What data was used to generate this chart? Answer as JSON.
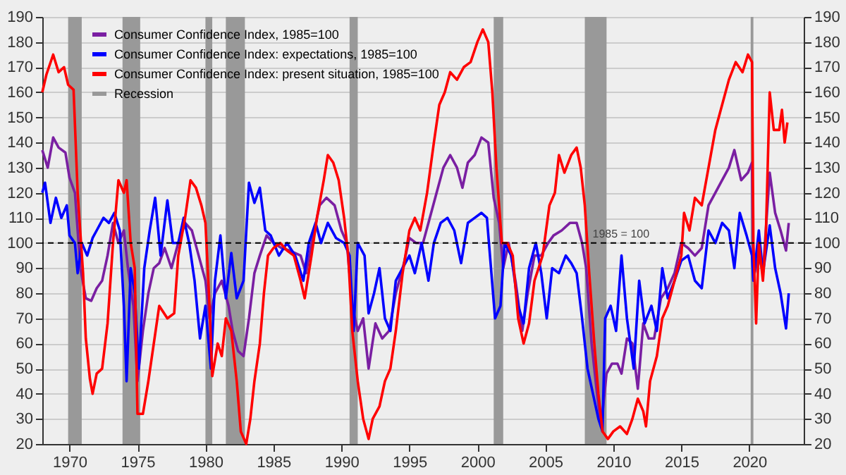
{
  "chart_data": {
    "type": "line",
    "legend": "top left",
    "grid": "y",
    "line_style": "solid",
    "xlim": [
      1968,
      2024
    ],
    "xticks": [
      1970,
      1975,
      1980,
      1985,
      1990,
      1995,
      2000,
      2005,
      2010,
      2015,
      2020
    ],
    "ylim": [
      20,
      190
    ],
    "yticks": [
      20,
      30,
      40,
      50,
      60,
      70,
      80,
      90,
      100,
      110,
      120,
      130,
      140,
      150,
      160,
      170,
      180,
      190
    ],
    "y2lim": [
      20,
      190
    ],
    "y2ticks": [
      20,
      30,
      40,
      50,
      60,
      70,
      80,
      90,
      100,
      110,
      120,
      130,
      140,
      150,
      160,
      170,
      180,
      190
    ],
    "ref_lines": [
      {
        "axis": "y",
        "value": 100,
        "label": "1985 = 100",
        "color": "#000000",
        "line_style": "dashed"
      }
    ],
    "bands": [
      {
        "axis": "x",
        "from": 1969.9,
        "to": 1970.9,
        "label": "Recession",
        "color": "#999999"
      },
      {
        "axis": "x",
        "from": 1973.9,
        "to": 1975.2,
        "color": "#999999"
      },
      {
        "axis": "x",
        "from": 1980.0,
        "to": 1980.5,
        "color": "#999999"
      },
      {
        "axis": "x",
        "from": 1981.5,
        "to": 1982.9,
        "color": "#999999"
      },
      {
        "axis": "x",
        "from": 1990.6,
        "to": 1991.2,
        "color": "#999999"
      },
      {
        "axis": "x",
        "from": 2001.2,
        "to": 2001.9,
        "color": "#999999"
      },
      {
        "axis": "x",
        "from": 2007.9,
        "to": 2009.5,
        "color": "#999999"
      },
      {
        "axis": "x",
        "from": 2020.1,
        "to": 2020.3,
        "color": "#999999"
      }
    ],
    "series": [
      {
        "name": "Consumer Confidence Index, 1985=100",
        "color": "#7a1fa2",
        "x": [
          1968.0,
          1968.4,
          1968.8,
          1969.2,
          1969.7,
          1970.0,
          1970.4,
          1970.8,
          1971.2,
          1971.6,
          1972.0,
          1972.4,
          1972.8,
          1973.2,
          1973.6,
          1974.0,
          1974.3,
          1974.7,
          1975.0,
          1975.4,
          1975.8,
          1976.2,
          1976.6,
          1977.0,
          1977.5,
          1978.0,
          1978.5,
          1979.0,
          1979.5,
          1980.0,
          1980.3,
          1980.7,
          1981.2,
          1981.7,
          1982.0,
          1982.4,
          1982.8,
          1983.2,
          1983.6,
          1984.0,
          1984.5,
          1985.0,
          1985.6,
          1986.2,
          1987.0,
          1987.4,
          1987.8,
          1988.4,
          1988.9,
          1989.5,
          1990.0,
          1990.4,
          1990.8,
          1991.2,
          1991.6,
          1992.0,
          1992.5,
          1993.0,
          1993.5,
          1994.0,
          1994.6,
          1995.0,
          1995.5,
          1996.0,
          1996.5,
          1997.0,
          1997.5,
          1998.0,
          1998.5,
          1998.9,
          1999.3,
          1999.8,
          2000.3,
          2000.8,
          2001.2,
          2001.6,
          2001.9,
          2002.3,
          2002.8,
          2003.3,
          2003.7,
          2004.2,
          2004.7,
          2005.2,
          2005.6,
          2006.2,
          2006.8,
          2007.3,
          2007.7,
          2008.0,
          2008.4,
          2008.8,
          2009.1,
          2009.5,
          2009.9,
          2010.3,
          2010.6,
          2011.0,
          2011.4,
          2011.8,
          2012.2,
          2012.6,
          2013.0,
          2013.5,
          2014.0,
          2014.5,
          2015.0,
          2015.5,
          2016.0,
          2016.5,
          2017.0,
          2017.5,
          2018.0,
          2018.5,
          2018.9,
          2019.4,
          2019.9,
          2020.2,
          2020.3,
          2020.7,
          2021.0,
          2021.5,
          2021.9,
          2022.3,
          2022.7,
          2022.9
        ],
        "values": [
          137,
          130,
          142,
          138,
          136,
          126,
          120,
          90,
          78,
          77,
          82,
          85,
          95,
          108,
          100,
          105,
          90,
          75,
          45,
          65,
          80,
          90,
          92,
          98,
          90,
          100,
          108,
          105,
          95,
          85,
          70,
          80,
          85,
          75,
          65,
          57,
          55,
          70,
          88,
          95,
          103,
          100,
          98,
          97,
          95,
          88,
          100,
          115,
          118,
          115,
          105,
          100,
          75,
          65,
          70,
          50,
          68,
          62,
          65,
          80,
          92,
          102,
          100,
          100,
          110,
          120,
          130,
          135,
          130,
          122,
          132,
          135,
          142,
          140,
          118,
          108,
          90,
          100,
          85,
          65,
          80,
          95,
          95,
          100,
          103,
          105,
          108,
          108,
          100,
          90,
          60,
          40,
          27,
          48,
          52,
          52,
          48,
          62,
          60,
          42,
          68,
          62,
          62,
          78,
          82,
          88,
          100,
          98,
          95,
          98,
          115,
          120,
          125,
          130,
          137,
          125,
          128,
          132,
          86,
          95,
          88,
          128,
          112,
          105,
          97,
          108
        ]
      },
      {
        "name": "Consumer Confidence Index: expectations, 1985=100",
        "color": "#0000ff",
        "x": [
          1968.0,
          1968.2,
          1968.6,
          1969.0,
          1969.4,
          1969.8,
          1970.0,
          1970.4,
          1970.6,
          1970.9,
          1971.3,
          1971.7,
          1972.0,
          1972.5,
          1972.9,
          1973.3,
          1973.7,
          1974.0,
          1974.2,
          1974.5,
          1974.8,
          1975.1,
          1975.5,
          1975.9,
          1976.3,
          1976.7,
          1977.2,
          1977.6,
          1978.0,
          1978.4,
          1978.8,
          1979.2,
          1979.6,
          1980.0,
          1980.4,
          1980.7,
          1981.1,
          1981.5,
          1981.9,
          1982.3,
          1982.8,
          1983.2,
          1983.6,
          1984.0,
          1984.4,
          1984.8,
          1985.4,
          1986.0,
          1986.6,
          1987.2,
          1987.6,
          1988.1,
          1988.5,
          1989.0,
          1989.6,
          1990.2,
          1990.6,
          1990.9,
          1991.2,
          1991.7,
          1992.0,
          1992.4,
          1992.8,
          1993.2,
          1993.6,
          1994.0,
          1994.5,
          1995.0,
          1995.4,
          1995.9,
          1996.4,
          1996.8,
          1997.3,
          1997.8,
          1998.3,
          1998.8,
          1999.3,
          1999.8,
          2000.3,
          2000.7,
          2001.0,
          2001.3,
          2001.7,
          2002.0,
          2002.5,
          2003.0,
          2003.4,
          2003.8,
          2004.3,
          2004.7,
          2005.1,
          2005.5,
          2006.0,
          2006.5,
          2006.9,
          2007.3,
          2007.7,
          2008.1,
          2008.5,
          2008.9,
          2009.2,
          2009.4,
          2009.8,
          2010.2,
          2010.6,
          2011.0,
          2011.5,
          2011.9,
          2012.3,
          2012.8,
          2013.2,
          2013.6,
          2014.0,
          2014.5,
          2015.0,
          2015.5,
          2016.0,
          2016.5,
          2017.0,
          2017.5,
          2018.0,
          2018.5,
          2018.9,
          2019.3,
          2019.8,
          2020.2,
          2020.3,
          2020.7,
          2021.0,
          2021.5,
          2021.9,
          2022.3,
          2022.7,
          2022.9
        ],
        "values": [
          120,
          124,
          108,
          118,
          110,
          115,
          103,
          100,
          88,
          100,
          95,
          102,
          105,
          110,
          108,
          112,
          105,
          75,
          45,
          90,
          80,
          50,
          90,
          105,
          118,
          95,
          117,
          100,
          100,
          110,
          100,
          85,
          62,
          75,
          50,
          85,
          103,
          78,
          96,
          78,
          85,
          124,
          116,
          122,
          105,
          103,
          95,
          100,
          95,
          85,
          100,
          108,
          100,
          108,
          102,
          100,
          95,
          65,
          100,
          95,
          72,
          80,
          90,
          70,
          65,
          85,
          90,
          95,
          88,
          100,
          85,
          100,
          108,
          110,
          105,
          92,
          108,
          110,
          112,
          110,
          90,
          70,
          75,
          100,
          95,
          75,
          68,
          90,
          100,
          88,
          70,
          90,
          88,
          95,
          92,
          88,
          70,
          50,
          40,
          30,
          25,
          70,
          75,
          65,
          95,
          70,
          50,
          85,
          68,
          75,
          65,
          90,
          78,
          85,
          93,
          95,
          85,
          82,
          105,
          100,
          108,
          105,
          90,
          112,
          103,
          95,
          85,
          105,
          88,
          107,
          90,
          80,
          66,
          80
        ]
      },
      {
        "name": "Consumer Confidence Index: present situation, 1985=100",
        "color": "#ff0000",
        "x": [
          1968.0,
          1968.3,
          1968.8,
          1969.2,
          1969.6,
          1969.9,
          1970.3,
          1970.6,
          1971.0,
          1971.2,
          1971.5,
          1971.7,
          1972.0,
          1972.4,
          1972.8,
          1973.2,
          1973.6,
          1974.0,
          1974.2,
          1974.5,
          1974.8,
          1975.0,
          1975.4,
          1975.8,
          1976.2,
          1976.6,
          1977.2,
          1977.7,
          1978.0,
          1978.5,
          1978.9,
          1979.3,
          1979.7,
          1980.0,
          1980.3,
          1980.5,
          1980.9,
          1981.2,
          1981.5,
          1981.9,
          1982.3,
          1982.6,
          1983.0,
          1983.3,
          1983.6,
          1984.0,
          1984.3,
          1984.6,
          1985.0,
          1985.5,
          1986.0,
          1986.5,
          1987.0,
          1987.3,
          1987.8,
          1988.2,
          1988.7,
          1989.0,
          1989.4,
          1989.8,
          1990.2,
          1990.5,
          1990.8,
          1991.2,
          1991.6,
          1992.0,
          1992.3,
          1992.8,
          1993.2,
          1993.6,
          1994.0,
          1994.5,
          1995.0,
          1995.4,
          1995.8,
          1996.3,
          1996.8,
          1997.2,
          1997.6,
          1998.0,
          1998.5,
          1999.0,
          1999.5,
          2000.0,
          2000.4,
          2000.8,
          2001.1,
          2001.4,
          2001.8,
          2002.2,
          2002.6,
          2003.0,
          2003.4,
          2003.8,
          2004.2,
          2004.8,
          2005.3,
          2005.7,
          2006.0,
          2006.4,
          2006.9,
          2007.3,
          2007.6,
          2007.9,
          2008.2,
          2008.6,
          2008.9,
          2009.2,
          2009.6,
          2010.0,
          2010.5,
          2011.0,
          2011.4,
          2011.8,
          2012.2,
          2012.4,
          2012.7,
          2013.2,
          2013.6,
          2014.0,
          2014.5,
          2015.0,
          2015.2,
          2015.6,
          2016.0,
          2016.5,
          2017.0,
          2017.5,
          2018.0,
          2018.5,
          2019.0,
          2019.5,
          2019.9,
          2020.2,
          2020.3,
          2020.5,
          2020.7,
          2021.0,
          2021.2,
          2021.4,
          2021.5,
          2021.8,
          2022.2,
          2022.4,
          2022.6,
          2022.8
        ],
        "values": [
          160,
          167,
          175,
          168,
          170,
          163,
          161,
          120,
          88,
          62,
          46,
          40,
          48,
          50,
          68,
          100,
          125,
          120,
          125,
          100,
          90,
          32,
          32,
          45,
          60,
          75,
          70,
          72,
          95,
          110,
          125,
          122,
          115,
          108,
          75,
          47,
          60,
          55,
          70,
          65,
          45,
          25,
          20,
          30,
          45,
          60,
          80,
          95,
          98,
          100,
          97,
          95,
          85,
          78,
          95,
          110,
          125,
          135,
          132,
          125,
          110,
          95,
          65,
          45,
          30,
          22,
          30,
          35,
          45,
          50,
          65,
          88,
          105,
          110,
          105,
          120,
          140,
          155,
          160,
          168,
          165,
          170,
          172,
          180,
          185,
          180,
          160,
          130,
          100,
          100,
          95,
          70,
          60,
          68,
          85,
          95,
          115,
          120,
          135,
          128,
          135,
          138,
          130,
          115,
          90,
          60,
          40,
          25,
          22,
          25,
          27,
          24,
          30,
          38,
          33,
          27,
          45,
          55,
          70,
          75,
          85,
          95,
          112,
          105,
          118,
          115,
          130,
          145,
          155,
          165,
          172,
          168,
          175,
          172,
          100,
          68,
          100,
          85,
          100,
          140,
          160,
          145,
          145,
          153,
          140,
          148
        ]
      }
    ]
  }
}
